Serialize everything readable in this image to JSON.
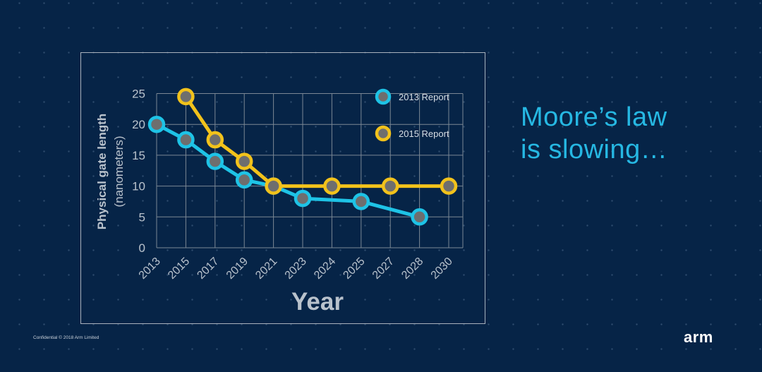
{
  "slide": {
    "headline_line1": "Moore’s law",
    "headline_line2": "is slowing…",
    "footer": "Confidential © 2018 Arm Limited",
    "logo": "arm"
  },
  "colors": {
    "background": "#062447",
    "series_2013": "#1ec3e6",
    "series_2015": "#f2c21b",
    "headline": "#26b8e3",
    "grid": "#7b8794",
    "axis_text": "#b9c2cc"
  },
  "chart_data": {
    "type": "line",
    "title": "",
    "xlabel": "Year",
    "ylabel": "Physical gate length",
    "ylabel_sub": "(nanometers)",
    "categories": [
      "2013",
      "2015",
      "2017",
      "2019",
      "2021",
      "2023",
      "2024",
      "2025",
      "2027",
      "2028",
      "2030"
    ],
    "ylim": [
      0,
      25
    ],
    "yticks": [
      0,
      5,
      10,
      15,
      20,
      25
    ],
    "legend_position": "top-right",
    "series": [
      {
        "name": "2013 Report",
        "x": [
          0,
          1,
          2,
          3,
          4,
          5,
          7,
          9
        ],
        "values": [
          20,
          17.5,
          14,
          11,
          10,
          8,
          7.5,
          5
        ]
      },
      {
        "name": "2015 Report",
        "x": [
          1,
          2,
          3,
          4,
          6,
          8,
          10
        ],
        "values": [
          24.5,
          17.5,
          14,
          10,
          10,
          10,
          10
        ]
      }
    ]
  }
}
